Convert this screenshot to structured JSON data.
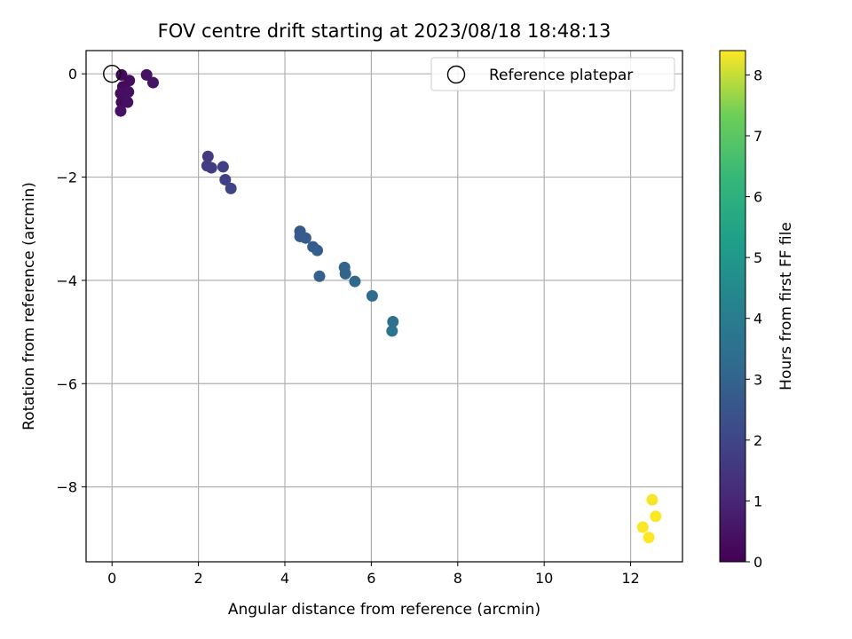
{
  "chart_data": {
    "type": "scatter",
    "title": "FOV centre drift starting at 2023/08/18 18:48:13",
    "xlabel": "Angular distance from reference (arcmin)",
    "ylabel": "Rotation from reference (arcmin)",
    "xlim": [
      -0.6,
      13.2
    ],
    "ylim": [
      -9.45,
      0.45
    ],
    "xticks": [
      0,
      2,
      4,
      6,
      8,
      10,
      12
    ],
    "yticks": [
      0,
      -2,
      -4,
      -6,
      -8
    ],
    "grid": true,
    "legend": {
      "placement": "top-right",
      "entries": [
        "Reference platepar"
      ]
    },
    "reference_point": {
      "x": 0,
      "y": 0
    },
    "colorbar": {
      "label": "Hours from first FF file",
      "range": [
        0,
        8.4
      ],
      "ticks": [
        0,
        1,
        2,
        3,
        4,
        5,
        6,
        7,
        8
      ],
      "colormap": "viridis"
    },
    "points": [
      {
        "x": 0.22,
        "y": -0.02,
        "hours": 0.2
      },
      {
        "x": 0.4,
        "y": -0.13,
        "hours": 0.3
      },
      {
        "x": 0.25,
        "y": -0.25,
        "hours": 0.25
      },
      {
        "x": 0.38,
        "y": -0.35,
        "hours": 0.4
      },
      {
        "x": 0.2,
        "y": -0.38,
        "hours": 0.35
      },
      {
        "x": 0.22,
        "y": -0.55,
        "hours": 0.3
      },
      {
        "x": 0.36,
        "y": -0.55,
        "hours": 0.4
      },
      {
        "x": 0.2,
        "y": -0.72,
        "hours": 0.45
      },
      {
        "x": 0.8,
        "y": -0.02,
        "hours": 0.45
      },
      {
        "x": 0.95,
        "y": -0.17,
        "hours": 0.5
      },
      {
        "x": 2.22,
        "y": -1.6,
        "hours": 1.6
      },
      {
        "x": 2.2,
        "y": -1.78,
        "hours": 1.7
      },
      {
        "x": 2.3,
        "y": -1.82,
        "hours": 1.7
      },
      {
        "x": 2.57,
        "y": -1.8,
        "hours": 1.8
      },
      {
        "x": 2.62,
        "y": -2.05,
        "hours": 1.85
      },
      {
        "x": 2.75,
        "y": -2.22,
        "hours": 1.9
      },
      {
        "x": 4.35,
        "y": -3.05,
        "hours": 2.6
      },
      {
        "x": 4.35,
        "y": -3.15,
        "hours": 2.65
      },
      {
        "x": 4.48,
        "y": -3.18,
        "hours": 2.7
      },
      {
        "x": 4.65,
        "y": -3.35,
        "hours": 2.75
      },
      {
        "x": 4.75,
        "y": -3.42,
        "hours": 2.8
      },
      {
        "x": 4.8,
        "y": -3.92,
        "hours": 2.9
      },
      {
        "x": 5.38,
        "y": -3.75,
        "hours": 3.0
      },
      {
        "x": 5.4,
        "y": -3.87,
        "hours": 3.05
      },
      {
        "x": 5.62,
        "y": -4.02,
        "hours": 3.15
      },
      {
        "x": 6.02,
        "y": -4.3,
        "hours": 3.35
      },
      {
        "x": 6.5,
        "y": -4.8,
        "hours": 3.5
      },
      {
        "x": 6.48,
        "y": -4.98,
        "hours": 3.55
      },
      {
        "x": 12.5,
        "y": -8.25,
        "hours": 8.35
      },
      {
        "x": 12.58,
        "y": -8.57,
        "hours": 8.38
      },
      {
        "x": 12.28,
        "y": -8.78,
        "hours": 8.38
      },
      {
        "x": 12.42,
        "y": -8.98,
        "hours": 8.4
      }
    ]
  }
}
